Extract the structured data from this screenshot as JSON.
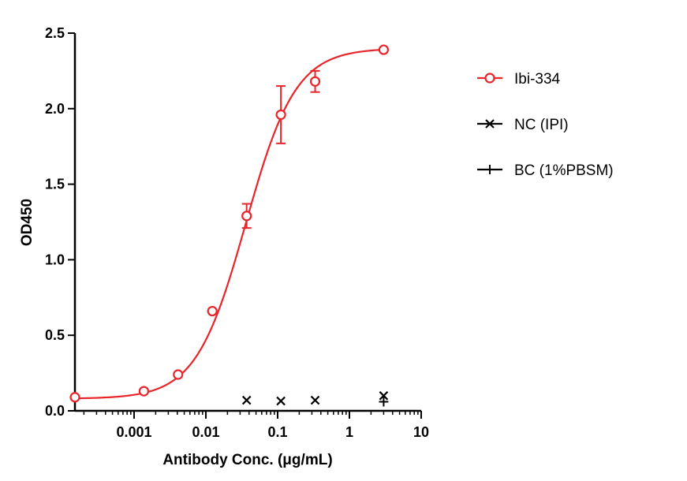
{
  "chart_data": {
    "type": "scatter",
    "xlabel": "Antibody Conc. (μg/mL)",
    "ylabel": "OD450",
    "xscale": "log",
    "xlim": [
      0.00015,
      10
    ],
    "ylim": [
      0,
      2.5
    ],
    "x_ticks": [
      {
        "value": 0.001,
        "label": "0.001"
      },
      {
        "value": 0.01,
        "label": "0.01"
      },
      {
        "value": 0.1,
        "label": "0.1"
      },
      {
        "value": 1,
        "label": "1"
      },
      {
        "value": 10,
        "label": "10"
      }
    ],
    "y_ticks": [
      {
        "value": 0,
        "label": "0.0"
      },
      {
        "value": 0.5,
        "label": "0.5"
      },
      {
        "value": 1.0,
        "label": "1.0"
      },
      {
        "value": 1.5,
        "label": "1.5"
      },
      {
        "value": 2.0,
        "label": "2.0"
      },
      {
        "value": 2.5,
        "label": "2.5"
      }
    ],
    "legend_position": "right",
    "grid": false,
    "series": [
      {
        "name": "Ibi-334",
        "color": "#e8252b",
        "marker": "circle-open",
        "fit": "4PL",
        "fit_params": {
          "bottom": 0.08,
          "top": 2.4,
          "ec50": 0.036,
          "hill": 1.25
        },
        "points": [
          {
            "x": 0.00015,
            "y": 0.09
          },
          {
            "x": 0.00137,
            "y": 0.13
          },
          {
            "x": 0.0041,
            "y": 0.24
          },
          {
            "x": 0.0123,
            "y": 0.66
          },
          {
            "x": 0.037,
            "y": 1.29,
            "err": 0.08
          },
          {
            "x": 0.111,
            "y": 1.96,
            "err": 0.19
          },
          {
            "x": 0.333,
            "y": 2.18,
            "err": 0.07
          },
          {
            "x": 3.0,
            "y": 2.39
          }
        ]
      },
      {
        "name": "NC (IPI)",
        "color": "#000000",
        "marker": "x",
        "points": [
          {
            "x": 0.037,
            "y": 0.07
          },
          {
            "x": 0.111,
            "y": 0.065
          },
          {
            "x": 0.333,
            "y": 0.07
          },
          {
            "x": 3.0,
            "y": 0.1
          }
        ]
      },
      {
        "name": "BC (1%PBSM)",
        "color": "#000000",
        "marker": "plus",
        "points": [
          {
            "x": 3.0,
            "y": 0.06
          }
        ]
      }
    ]
  }
}
